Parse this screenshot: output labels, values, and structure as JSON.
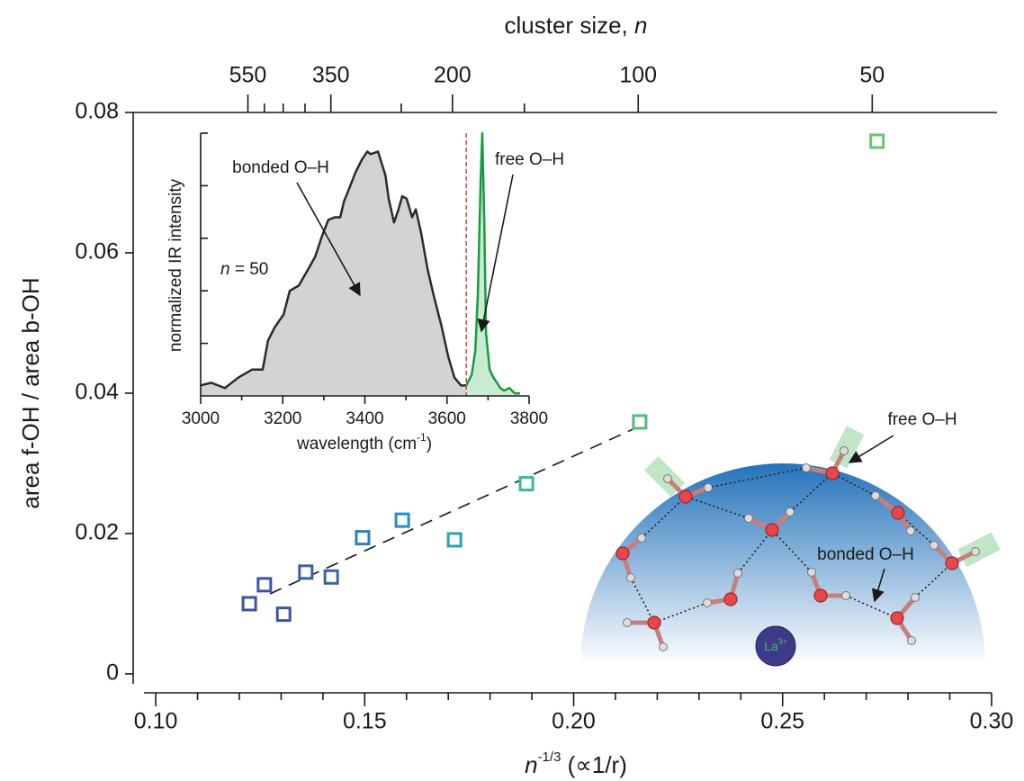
{
  "chart_data": [
    {
      "type": "scatter",
      "xlabel": [
        "n",
        "-1/3",
        " (∝1/r)"
      ],
      "ylabel": "area f-OH / area b-OH",
      "xlim": [
        0.0946,
        0.3013
      ],
      "ylim": [
        -0.0027,
        0.08
      ],
      "xticks": [
        {
          "value": 0.1,
          "label": "0.10"
        },
        0.15,
        {
          "value": 0.2,
          "label": "0.20"
        },
        0.25,
        {
          "value": 0.3,
          "label": "0.30"
        }
      ],
      "xminorticks": [
        0.11,
        0.12,
        0.13,
        0.14,
        0.16,
        0.17,
        0.18,
        0.19,
        0.21,
        0.22,
        0.23,
        0.24,
        0.26,
        0.27,
        0.28,
        0.29
      ],
      "yticks": [
        0,
        0.02,
        0.04,
        0.06,
        0.08
      ],
      "top_axis": {
        "label": [
          "cluster size, ",
          "n"
        ],
        "scale": "inverse-cube-root",
        "ticks": [
          550,
          350,
          200,
          100,
          50
        ],
        "minor_ticks": [
          500,
          450,
          400,
          250,
          150
        ]
      },
      "series": [
        {
          "x": [
            0.1224,
            0.126,
            0.1306,
            0.1359,
            0.142,
            0.1495,
            0.159,
            0.1715,
            0.1887,
            0.2158,
            0.2726
          ],
          "values": [
            0.01,
            0.0127,
            0.0085,
            0.0145,
            0.0138,
            0.0194,
            0.0219,
            0.0191,
            0.0271,
            0.0359,
            0.0759
          ],
          "colors": [
            "#3a55a4",
            "#3a55a4",
            "#3a55a4",
            "#3a5fa8",
            "#3a65ab",
            "#2a7fc0",
            "#2a8dc0",
            "#26a5ad",
            "#3bb89a",
            "#55bd7c",
            "#6cc46a"
          ]
        }
      ],
      "fit_line": {
        "x": [
          0.1273,
          0.2158
        ],
        "values": [
          0.0114,
          0.0353
        ],
        "color": "#1a1a1a",
        "dashed": true
      }
    },
    {
      "type": "line",
      "xlabel": [
        "wavelength (cm",
        "-1",
        ")"
      ],
      "ylabel": "normalized IR intensity",
      "xlim": [
        3000,
        3800
      ],
      "ylim": [
        0,
        1
      ],
      "xticks": [
        3000,
        3200,
        3400,
        3600,
        3800
      ],
      "xminorticks": [
        3100,
        3300,
        3500,
        3700
      ],
      "ytick_marks": [
        0.2,
        0.4,
        0.6,
        0.8,
        1
      ],
      "annotations": [
        "bonded O–H",
        "free O–H"
      ],
      "sample_label": [
        "n",
        " = 50"
      ],
      "divider": {
        "x": 3647,
        "color": "#e0332e"
      },
      "series": [
        {
          "color": "#2b2b2b",
          "fill": "#d3d3d3",
          "x": [
            3000,
            3026,
            3059,
            3092,
            3125,
            3151,
            3164,
            3180,
            3202,
            3217,
            3239,
            3261,
            3279,
            3296,
            3311,
            3327,
            3340,
            3349,
            3362,
            3377,
            3393,
            3406,
            3414,
            3432,
            3450,
            3458,
            3471,
            3482,
            3491,
            3502,
            3515,
            3524,
            3537,
            3553,
            3568,
            3586,
            3603,
            3618,
            3634,
            3647
          ],
          "values": [
            0.04,
            0.05,
            0.03,
            0.07,
            0.1,
            0.1,
            0.21,
            0.26,
            0.31,
            0.4,
            0.42,
            0.48,
            0.53,
            0.61,
            0.67,
            0.68,
            0.68,
            0.74,
            0.79,
            0.85,
            0.9,
            0.93,
            0.92,
            0.93,
            0.84,
            0.75,
            0.66,
            0.71,
            0.76,
            0.75,
            0.68,
            0.71,
            0.62,
            0.48,
            0.38,
            0.27,
            0.15,
            0.07,
            0.04,
            0.04
          ]
        },
        {
          "color": "#1a9a40",
          "fill": "#c8eccf",
          "x": [
            3647,
            3660,
            3669,
            3675,
            3682,
            3686,
            3691,
            3695,
            3704,
            3713,
            3722,
            3730,
            3739,
            3752,
            3765,
            3778
          ],
          "values": [
            0.04,
            0.08,
            0.17,
            0.38,
            0.82,
            1,
            0.65,
            0.24,
            0.1,
            0.07,
            0.05,
            0.03,
            0.02,
            0.03,
            0.01,
            0.01
          ]
        }
      ]
    }
  ],
  "illustration": {
    "free_label": "free O–H",
    "bonded_label": "bonded O–H",
    "ion": [
      "La",
      "3+"
    ]
  }
}
